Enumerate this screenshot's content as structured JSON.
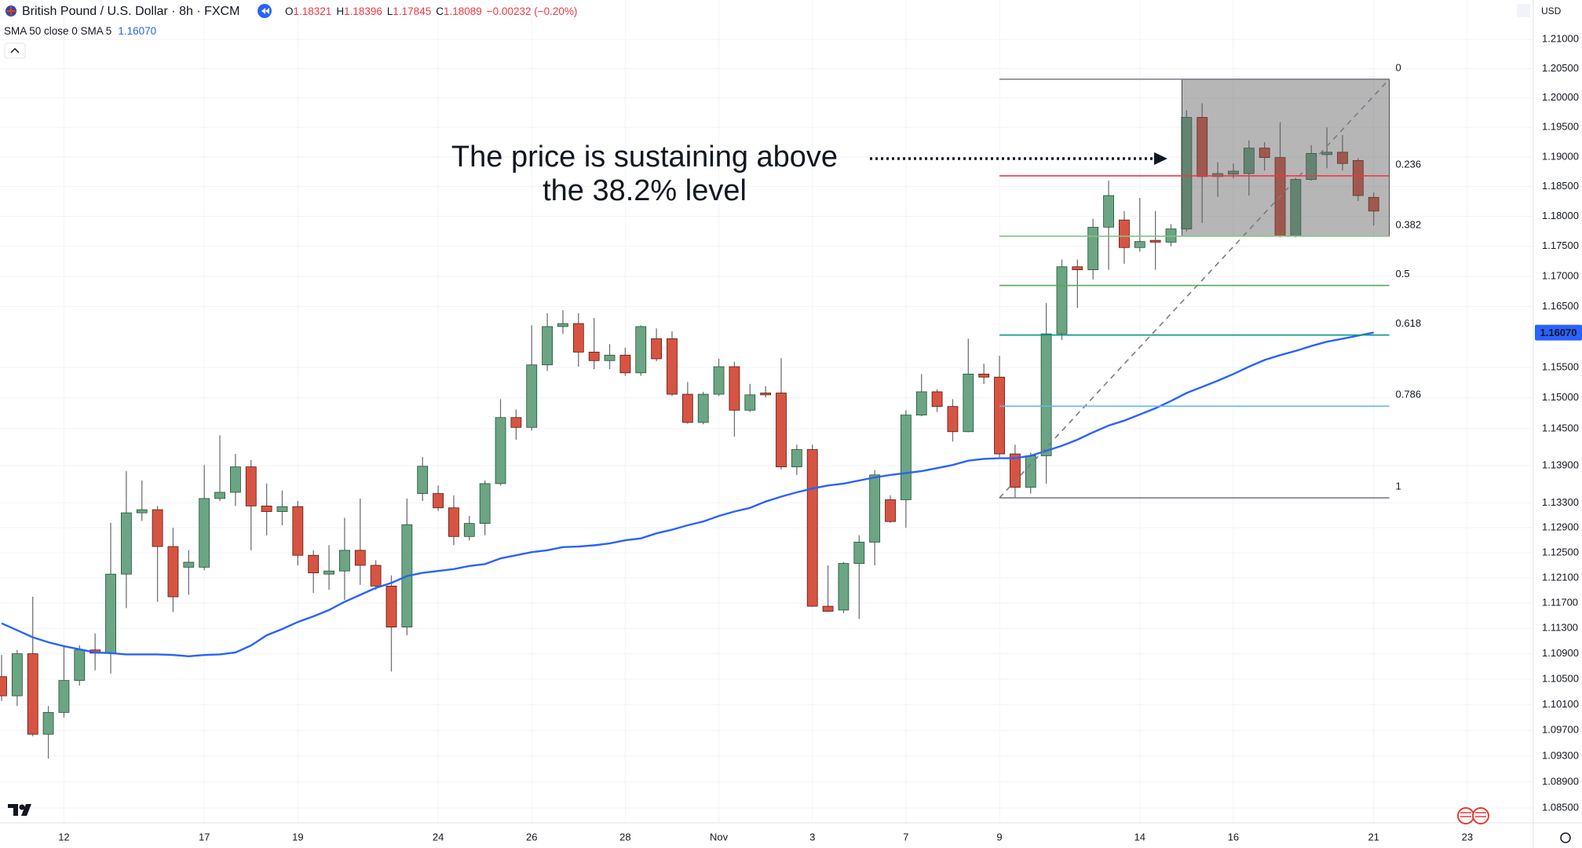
{
  "header": {
    "symbol": "British Pound / U.S. Dollar · 8h · FXCM",
    "ohlc": [
      {
        "key": "O",
        "value": "1.18321"
      },
      {
        "key": "H",
        "value": "1.18396"
      },
      {
        "key": "L",
        "value": "1.17845"
      },
      {
        "key": "C",
        "value": "1.18089"
      }
    ],
    "change": "−0.00232 (−0.20%)",
    "indicator": "SMA 50 close 0 SMA 5",
    "indicator_value": "1.16070",
    "currency": "USD"
  },
  "chart_data": {
    "type": "candlestick",
    "annotation": [
      "The price is sustaining above",
      "the 38.2% level"
    ],
    "categories": [
      null,
      null,
      null,
      null,
      "12",
      null,
      null,
      null,
      null,
      null,
      null,
      null,
      null,
      "17",
      null,
      null,
      null,
      null,
      null,
      "19",
      null,
      null,
      null,
      null,
      null,
      null,
      null,
      null,
      "24",
      null,
      null,
      null,
      null,
      null,
      "26",
      null,
      null,
      null,
      null,
      null,
      "28",
      null,
      null,
      null,
      null,
      null,
      "Nov",
      null,
      null,
      null,
      null,
      null,
      "3",
      null,
      null,
      null,
      null,
      null,
      "7",
      null,
      null,
      null,
      null,
      null,
      "9",
      null,
      null,
      null,
      null,
      null,
      null,
      null,
      null,
      "14",
      null,
      null,
      null,
      null,
      null,
      "16",
      null,
      null,
      null,
      null,
      null,
      null,
      null,
      null,
      "21",
      null,
      null,
      null,
      null,
      null,
      "23",
      null,
      null,
      null,
      null
    ],
    "open": [
      1.1054,
      1.1024,
      1.109,
      1.0964,
      1.0998,
      1.1048,
      1.1096,
      1.1091,
      1.1216,
      1.1314,
      1.1319,
      1.126,
      1.1227,
      1.1227,
      1.1337,
      1.1347,
      1.1388,
      1.1325,
      1.1316,
      1.1324,
      1.1246,
      1.1216,
      1.1221,
      1.1254,
      1.123,
      1.1197,
      1.1132,
      1.1345,
      1.1345,
      1.1322,
      1.1276,
      1.1297,
      1.1361,
      1.1468,
      1.1452,
      1.1554,
      1.1617,
      1.1622,
      1.1575,
      1.1561,
      1.157,
      1.1541,
      1.1597,
      1.1597,
      1.1506,
      1.146,
      1.1506,
      1.1551,
      1.148,
      1.1508,
      1.1508,
      1.1388,
      1.1416,
      1.1165,
      1.1159,
      1.1233,
      1.1267,
      1.1335,
      1.1335,
      1.1472,
      1.151,
      1.1486,
      1.1445,
      1.1539,
      1.1534,
      1.1409,
      1.1355,
      1.1406,
      1.1605,
      1.1716,
      1.1711,
      1.1782,
      1.1794,
      1.1748,
      1.176,
      1.1757,
      1.1779,
      1.1967,
      1.1867,
      1.1871,
      1.1872,
      1.1915,
      1.1899,
      1.1767,
      1.1862,
      1.1904,
      1.1908,
      1.1894,
      1.1832,
      null,
      null,
      null,
      null,
      null,
      null,
      null,
      null,
      null,
      null
    ],
    "high": [
      1.1088,
      1.1096,
      1.118,
      1.1008,
      1.1103,
      1.1103,
      1.1122,
      1.1298,
      1.1381,
      1.1366,
      1.1325,
      1.129,
      1.1254,
      1.1391,
      1.1439,
      1.1409,
      1.1399,
      1.1361,
      1.135,
      1.1333,
      1.1254,
      1.1262,
      1.1306,
      1.1337,
      1.1238,
      1.1214,
      1.1337,
      1.1404,
      1.1358,
      1.1342,
      1.1309,
      1.1366,
      1.1498,
      1.1481,
      1.1619,
      1.1639,
      1.1644,
      1.1639,
      1.1631,
      1.1588,
      1.1582,
      1.1619,
      1.1614,
      1.1609,
      1.1526,
      1.151,
      1.1564,
      1.1559,
      1.1523,
      1.1519,
      1.1565,
      1.1424,
      1.1424,
      1.123,
      1.1235,
      1.1278,
      1.1383,
      1.1342,
      1.148,
      1.1539,
      1.1514,
      1.1498,
      1.1597,
      1.1556,
      1.1569,
      1.1424,
      1.1411,
      1.1656,
      1.1728,
      1.1728,
      1.1796,
      1.186,
      1.1809,
      1.1831,
      1.1809,
      1.1787,
      1.1979,
      1.1991,
      1.1891,
      1.1889,
      1.1928,
      1.1925,
      1.1959,
      1.1865,
      1.192,
      1.195,
      1.1937,
      1.1898,
      1.184,
      null,
      null,
      null,
      null,
      null,
      null,
      null,
      null,
      null,
      null
    ],
    "low": [
      1.1016,
      1.1008,
      1.0961,
      1.0926,
      1.099,
      1.104,
      1.1064,
      1.1059,
      1.1162,
      1.1301,
      1.1172,
      1.1156,
      1.1183,
      1.1222,
      1.1333,
      1.1325,
      1.1254,
      1.1278,
      1.1294,
      1.123,
      1.1186,
      1.1191,
      1.1175,
      1.1199,
      1.1191,
      1.1062,
      1.1119,
      1.1333,
      1.1317,
      1.1262,
      1.127,
      1.1278,
      1.1358,
      1.1432,
      1.1447,
      1.1544,
      1.1605,
      1.1551,
      1.1547,
      1.1547,
      1.1536,
      1.1536,
      1.156,
      1.1503,
      1.1458,
      1.1457,
      1.1503,
      1.1437,
      1.1477,
      1.1501,
      1.1384,
      1.1375,
      1.1164,
      1.1156,
      1.1154,
      1.1145,
      1.123,
      1.1298,
      1.129,
      1.147,
      1.1477,
      1.1429,
      1.1444,
      1.1523,
      1.1404,
      1.1337,
      1.1345,
      1.1361,
      1.1595,
      1.1648,
      1.1695,
      1.1711,
      1.1721,
      1.1741,
      1.1711,
      1.175,
      1.1775,
      1.1789,
      1.1833,
      1.1864,
      1.1835,
      1.1877,
      1.1765,
      1.1765,
      1.186,
      1.1881,
      1.1877,
      1.1826,
      1.1785,
      null,
      null,
      null,
      null,
      null,
      null,
      null,
      null,
      null,
      null
    ],
    "close": [
      1.1024,
      1.109,
      1.0964,
      1.0998,
      1.1048,
      1.1096,
      1.1091,
      1.1216,
      1.1314,
      1.1319,
      1.126,
      1.118,
      1.1235,
      1.1337,
      1.1347,
      1.1388,
      1.1325,
      1.1316,
      1.1324,
      1.1246,
      1.1218,
      1.1221,
      1.1254,
      1.123,
      1.1197,
      1.1132,
      1.1295,
      1.1389,
      1.1322,
      1.1276,
      1.1297,
      1.1361,
      1.1468,
      1.1452,
      1.1554,
      1.1617,
      1.1622,
      1.1575,
      1.1561,
      1.157,
      1.1541,
      1.1617,
      1.1564,
      1.1506,
      1.146,
      1.1506,
      1.1551,
      1.148,
      1.1505,
      1.1505,
      1.1388,
      1.1416,
      1.1165,
      1.1157,
      1.1233,
      1.1267,
      1.1375,
      1.13,
      1.1472,
      1.151,
      1.1486,
      1.1445,
      1.1539,
      1.1534,
      1.1409,
      1.1355,
      1.1406,
      1.1605,
      1.1716,
      1.1711,
      1.1782,
      1.1835,
      1.1748,
      1.1758,
      1.1757,
      1.1779,
      1.1967,
      1.1867,
      1.1872,
      1.1876,
      1.1915,
      1.1899,
      1.1767,
      1.1862,
      1.1906,
      1.1908,
      1.1889,
      1.1835,
      1.1809,
      null,
      null,
      null,
      null,
      null,
      null,
      null,
      null,
      null,
      null
    ],
    "up_color": "#6ba583",
    "up_border": "#225437",
    "down_color": "#d75442",
    "down_border": "#5b1a13",
    "wick_color": "#737375",
    "sma": {
      "color": "#2962ff",
      "values": [
        1.1138,
        1.1127,
        1.1116,
        1.1108,
        1.1102,
        1.1097,
        1.1092,
        1.1091,
        1.1089,
        1.1089,
        1.1089,
        1.1088,
        1.1086,
        1.1088,
        1.1089,
        1.1092,
        1.1103,
        1.1119,
        1.1129,
        1.114,
        1.1149,
        1.1159,
        1.1172,
        1.1183,
        1.1194,
        1.1202,
        1.1213,
        1.1218,
        1.1221,
        1.1224,
        1.1229,
        1.1232,
        1.1241,
        1.1246,
        1.1251,
        1.1254,
        1.1259,
        1.126,
        1.1262,
        1.1265,
        1.127,
        1.1273,
        1.1281,
        1.1287,
        1.1294,
        1.13,
        1.1309,
        1.1316,
        1.1322,
        1.1332,
        1.134,
        1.1347,
        1.1353,
        1.1358,
        1.1361,
        1.1366,
        1.1371,
        1.1375,
        1.1378,
        1.1381,
        1.1386,
        1.1391,
        1.1398,
        1.1401,
        1.1402,
        1.1402,
        1.1406,
        1.1414,
        1.1422,
        1.1432,
        1.1444,
        1.1455,
        1.1463,
        1.1473,
        1.1483,
        1.1495,
        1.1508,
        1.1518,
        1.1528,
        1.1539,
        1.1551,
        1.1562,
        1.157,
        1.1577,
        1.1585,
        1.1592,
        1.1597,
        1.1602,
        1.1607,
        null,
        null,
        null,
        null,
        null,
        null,
        null,
        null,
        null,
        null
      ]
    },
    "fib": {
      "high": 1.2032,
      "low": 1.1338,
      "box_color": "#5d5d5d",
      "levels": [
        {
          "level": 0,
          "color": "#787b86"
        },
        {
          "level": 0.236,
          "color": "#f23645"
        },
        {
          "level": 0.382,
          "color": "#81c784"
        },
        {
          "level": 0.5,
          "color": "#4caf50"
        },
        {
          "level": 0.618,
          "color": "#089981"
        },
        {
          "level": 0.786,
          "color": "#64b5f6"
        },
        {
          "level": 1,
          "color": "#787b86"
        }
      ]
    },
    "log_scale": true,
    "grid": true,
    "ylim": [
      1.0827,
      1.2168
    ],
    "yticks": [
      {
        "value": 1.21,
        "label": "1.21000"
      },
      {
        "value": 1.205,
        "label": "1.20500"
      },
      {
        "value": 1.2,
        "label": "1.20000"
      },
      {
        "value": 1.195,
        "label": "1.19500"
      },
      {
        "value": 1.19,
        "label": "1.19000"
      },
      {
        "value": 1.185,
        "label": "1.18500"
      },
      {
        "value": 1.18,
        "label": "1.18000"
      },
      {
        "value": 1.175,
        "label": "1.17500"
      },
      {
        "value": 1.17,
        "label": "1.17000"
      },
      {
        "value": 1.165,
        "label": "1.16500"
      },
      {
        "value": 1.155,
        "label": "1.15500"
      },
      {
        "value": 1.15,
        "label": "1.15000"
      },
      {
        "value": 1.145,
        "label": "1.14500"
      },
      {
        "value": 1.139,
        "label": "1.13900"
      },
      {
        "value": 1.133,
        "label": "1.13300"
      },
      {
        "value": 1.129,
        "label": "1.12900"
      },
      {
        "value": 1.125,
        "label": "1.12500"
      },
      {
        "value": 1.121,
        "label": "1.12100"
      },
      {
        "value": 1.117,
        "label": "1.11700"
      },
      {
        "value": 1.113,
        "label": "1.11300"
      },
      {
        "value": 1.109,
        "label": "1.10900"
      },
      {
        "value": 1.105,
        "label": "1.10500"
      },
      {
        "value": 1.101,
        "label": "1.10100"
      },
      {
        "value": 1.097,
        "label": "1.09700"
      },
      {
        "value": 1.093,
        "label": "1.09300"
      },
      {
        "value": 1.089,
        "label": "1.08900"
      },
      {
        "value": 1.085,
        "label": "1.08500"
      }
    ]
  }
}
